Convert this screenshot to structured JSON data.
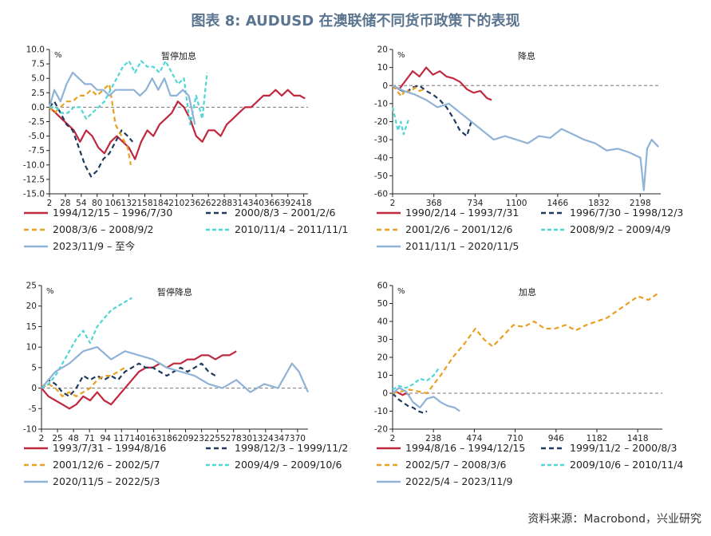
{
  "title": "图表 8: AUDUSD 在澳联储不同货币政策下的表现",
  "source": "资料来源：Macrobond，兴业研究",
  "chart_data": [
    {
      "type": "line",
      "title": "暂停加息",
      "ylabel": "%",
      "ylim": [
        -15,
        10
      ],
      "yticks": [
        "10.0",
        "7.5",
        "5.0",
        "2.5",
        "0.0",
        "-2.5",
        "-5.0",
        "-7.5",
        "-10.0",
        "-12.5",
        "-15.0"
      ],
      "xlim": [
        2,
        425
      ],
      "xticks": [
        "2",
        "28",
        "54",
        "80",
        "106",
        "132",
        "158",
        "184",
        "210",
        "236",
        "262",
        "288",
        "314",
        "340",
        "366",
        "392",
        "418"
      ],
      "series": [
        {
          "name": "1994/12/15 – 1996/7/30",
          "color": "#c0283e",
          "dash": "solid",
          "x": [
            2,
            12,
            22,
            32,
            42,
            52,
            62,
            72,
            82,
            92,
            102,
            112,
            122,
            132,
            142,
            152,
            162,
            172,
            182,
            192,
            202,
            212,
            222,
            232,
            242,
            252,
            262,
            272,
            282,
            292,
            302,
            312,
            322,
            332,
            342,
            352,
            362,
            372,
            382,
            392,
            402,
            412,
            420
          ],
          "y": [
            0,
            -1,
            -2,
            -3,
            -4,
            -6,
            -4,
            -5,
            -7,
            -8,
            -6,
            -5,
            -6,
            -7,
            -9,
            -6,
            -4,
            -5,
            -3,
            -2,
            -1,
            1,
            0,
            -2,
            -5,
            -6,
            -4,
            -4,
            -5,
            -3,
            -2,
            -1,
            0,
            0,
            1,
            2,
            2,
            3,
            2,
            3,
            2,
            2,
            1.5
          ]
        },
        {
          "name": "2000/8/3 – 2001/2/6",
          "color": "#1e3a5f",
          "dash": "6,4",
          "x": [
            2,
            10,
            20,
            30,
            40,
            50,
            60,
            70,
            80,
            90,
            100,
            110,
            120,
            130,
            138
          ],
          "y": [
            0,
            1,
            -1,
            -3,
            -4,
            -7,
            -10,
            -12,
            -11,
            -9,
            -8,
            -6,
            -4,
            -5,
            -6
          ]
        },
        {
          "name": "2008/3/6 – 2008/9/2",
          "color": "#e8a020",
          "dash": "6,4",
          "x": [
            2,
            10,
            20,
            30,
            40,
            50,
            60,
            70,
            80,
            90,
            100,
            110,
            120,
            130,
            135
          ],
          "y": [
            0,
            -1,
            0,
            1,
            1,
            2,
            2,
            3,
            2,
            3,
            4,
            -3,
            -5,
            -7,
            -10
          ]
        },
        {
          "name": "2010/11/4 – 2011/11/1",
          "color": "#4fd6d6",
          "dash": "5,3",
          "x": [
            2,
            12,
            22,
            32,
            42,
            52,
            62,
            72,
            82,
            92,
            102,
            112,
            122,
            132,
            142,
            152,
            162,
            172,
            182,
            192,
            202,
            212,
            222,
            232,
            242,
            252,
            260
          ],
          "y": [
            0,
            0,
            -1,
            -1,
            0,
            0,
            -2,
            -1,
            0,
            1,
            3,
            5,
            7,
            8,
            6,
            8,
            7,
            7,
            6,
            8,
            6,
            4,
            5,
            -3,
            2,
            -2,
            6
          ]
        },
        {
          "name": "2023/11/9 – 至今",
          "color": "#8fb3d6",
          "dash": "solid",
          "x": [
            2,
            10,
            20,
            30,
            40,
            50,
            60,
            70,
            80,
            90,
            100,
            110,
            120,
            130,
            140,
            150,
            160,
            170,
            180,
            190,
            200,
            210,
            220,
            230,
            240
          ],
          "y": [
            0,
            3,
            1,
            4,
            6,
            5,
            4,
            4,
            3,
            3,
            2,
            3,
            3,
            3,
            3,
            2,
            3,
            5,
            3,
            5,
            2,
            2,
            3,
            2,
            -3
          ]
        }
      ]
    },
    {
      "type": "line",
      "title": "降息",
      "ylabel": "%",
      "ylim": [
        -60,
        20
      ],
      "yticks": [
        "20",
        "10",
        "0",
        "-10",
        "-20",
        "-30",
        "-40",
        "-50",
        "-60"
      ],
      "xlim": [
        2,
        2380
      ],
      "xticks": [
        "2",
        "368",
        "734",
        "1100",
        "1466",
        "1832",
        "2198"
      ],
      "series": [
        {
          "name": "1990/2/14 – 1993/7/31",
          "color": "#c0283e",
          "dash": "solid",
          "x": [
            2,
            60,
            120,
            180,
            240,
            300,
            360,
            420,
            480,
            540,
            600,
            660,
            720,
            780,
            840,
            880
          ],
          "y": [
            0,
            -2,
            3,
            8,
            5,
            10,
            6,
            8,
            5,
            4,
            2,
            -2,
            -4,
            -3,
            -7,
            -8
          ]
        },
        {
          "name": "1996/7/30 – 1998/12/3",
          "color": "#1e3a5f",
          "dash": "6,4",
          "x": [
            2,
            60,
            120,
            180,
            240,
            300,
            360,
            420,
            480,
            540,
            600,
            660,
            700
          ],
          "y": [
            0,
            -2,
            -4,
            -1,
            0,
            -3,
            -5,
            -8,
            -12,
            -18,
            -25,
            -28,
            -20
          ]
        },
        {
          "name": "2001/2/6 – 2001/12/6",
          "color": "#e8a020",
          "dash": "6,4",
          "x": [
            2,
            40,
            80,
            120,
            160,
            200,
            240,
            280
          ],
          "y": [
            0,
            -3,
            -6,
            -2,
            -4,
            -1,
            -3,
            -2
          ]
        },
        {
          "name": "2008/9/2 – 2009/4/9",
          "color": "#4fd6d6",
          "dash": "5,3",
          "x": [
            2,
            25,
            50,
            75,
            100,
            125,
            150
          ],
          "y": [
            -12,
            -18,
            -25,
            -20,
            -27,
            -22,
            -18
          ]
        },
        {
          "name": "2011/11/1 – 2020/11/5",
          "color": "#8fb3d6",
          "dash": "solid",
          "x": [
            2,
            100,
            200,
            300,
            400,
            500,
            600,
            700,
            800,
            900,
            1000,
            1100,
            1200,
            1300,
            1400,
            1500,
            1600,
            1700,
            1800,
            1900,
            2000,
            2100,
            2200,
            2230,
            2260,
            2300,
            2360
          ],
          "y": [
            0,
            -3,
            -5,
            -8,
            -12,
            -10,
            -15,
            -20,
            -25,
            -30,
            -28,
            -30,
            -32,
            -28,
            -29,
            -24,
            -27,
            -30,
            -32,
            -36,
            -35,
            -37,
            -40,
            -58,
            -35,
            -30,
            -34
          ]
        }
      ]
    },
    {
      "type": "line",
      "title": "暂停降息",
      "ylabel": "%",
      "ylim": [
        -10,
        25
      ],
      "yticks": [
        "25",
        "20",
        "15",
        "10",
        "5",
        "0",
        "-5",
        "-10"
      ],
      "xlim": [
        2,
        385
      ],
      "xticks": [
        "2",
        "25",
        "48",
        "71",
        "94",
        "117",
        "140",
        "163",
        "186",
        "209",
        "232",
        "255",
        "278",
        "301",
        "324",
        "347",
        "370"
      ],
      "series": [
        {
          "name": "1993/7/31 – 1994/8/16",
          "color": "#c0283e",
          "dash": "solid",
          "x": [
            2,
            12,
            22,
            32,
            42,
            52,
            62,
            72,
            82,
            92,
            102,
            112,
            122,
            132,
            142,
            152,
            162,
            172,
            182,
            192,
            202,
            212,
            222,
            232,
            242,
            252,
            262,
            272,
            282
          ],
          "y": [
            0,
            -2,
            -3,
            -4,
            -5,
            -4,
            -2,
            -3,
            -1,
            -3,
            -4,
            -2,
            0,
            2,
            4,
            5,
            5,
            6,
            5,
            6,
            6,
            7,
            7,
            8,
            8,
            7,
            8,
            8,
            9
          ]
        },
        {
          "name": "1998/12/3 – 1999/11/2",
          "color": "#1e3a5f",
          "dash": "6,4",
          "x": [
            2,
            12,
            22,
            32,
            42,
            52,
            62,
            72,
            82,
            92,
            102,
            112,
            122,
            132,
            142,
            152,
            162,
            172,
            182,
            192,
            202,
            212,
            222,
            232,
            242,
            252
          ],
          "y": [
            0,
            2,
            1,
            -1,
            -2,
            0,
            3,
            2,
            3,
            2,
            3,
            2,
            4,
            5,
            6,
            5,
            5,
            4,
            3,
            4,
            5,
            4,
            5,
            6,
            4,
            3
          ]
        },
        {
          "name": "2001/12/6 – 2002/5/7",
          "color": "#e8a020",
          "dash": "6,4",
          "x": [
            2,
            12,
            22,
            32,
            42,
            52,
            62,
            72,
            82,
            92,
            102,
            112,
            122
          ],
          "y": [
            0,
            1,
            0,
            -2,
            -1,
            -2,
            -1,
            0,
            2,
            3,
            3,
            4,
            5
          ]
        },
        {
          "name": "2009/4/9 – 2009/10/6",
          "color": "#4fd6d6",
          "dash": "5,3",
          "x": [
            2,
            12,
            22,
            32,
            42,
            52,
            62,
            72,
            82,
            92,
            102,
            112,
            122,
            132
          ],
          "y": [
            0,
            1,
            3,
            6,
            9,
            12,
            14,
            11,
            15,
            17,
            19,
            20,
            21,
            22
          ]
        },
        {
          "name": "2020/11/5 – 2022/5/3",
          "color": "#8fb3d6",
          "dash": "solid",
          "x": [
            2,
            22,
            42,
            62,
            82,
            102,
            122,
            142,
            162,
            182,
            202,
            222,
            242,
            262,
            282,
            302,
            322,
            342,
            362,
            372,
            385
          ],
          "y": [
            0,
            4,
            6,
            9,
            10,
            7,
            9,
            8,
            7,
            5,
            4,
            3,
            1,
            0,
            2,
            -1,
            1,
            0,
            6,
            4,
            -1
          ]
        }
      ]
    },
    {
      "type": "line",
      "title": "加息",
      "ylabel": "%",
      "ylim": [
        -20,
        60
      ],
      "yticks": [
        "60",
        "50",
        "40",
        "30",
        "20",
        "10",
        "0",
        "-10",
        "-20"
      ],
      "xlim": [
        2,
        1560
      ],
      "xticks": [
        "2",
        "238",
        "474",
        "710",
        "946",
        "1182",
        "1418"
      ],
      "series": [
        {
          "name": "1994/8/16 – 1994/12/15",
          "color": "#c0283e",
          "dash": "solid",
          "x": [
            2,
            20,
            40,
            60,
            80,
            100
          ],
          "y": [
            0,
            1,
            0,
            -1,
            0,
            -1
          ]
        },
        {
          "name": "1999/11/2 – 2000/8/3",
          "color": "#1e3a5f",
          "dash": "6,4",
          "x": [
            2,
            30,
            60,
            90,
            120,
            150,
            180,
            200
          ],
          "y": [
            0,
            -3,
            -5,
            -7,
            -8,
            -10,
            -11,
            -10
          ]
        },
        {
          "name": "2002/5/7 – 2008/3/6",
          "color": "#e8a020",
          "dash": "6,4",
          "x": [
            2,
            100,
            200,
            280,
            350,
            420,
            480,
            530,
            580,
            640,
            700,
            760,
            820,
            880,
            940,
            1000,
            1060,
            1120,
            1180,
            1240,
            1300,
            1360,
            1420,
            1480,
            1540
          ],
          "y": [
            0,
            2,
            0,
            10,
            20,
            28,
            36,
            30,
            26,
            32,
            38,
            37,
            40,
            36,
            36,
            38,
            35,
            38,
            40,
            42,
            46,
            50,
            54,
            52,
            56
          ]
        },
        {
          "name": "2009/10/6 – 2010/11/4",
          "color": "#4fd6d6",
          "dash": "5,3",
          "x": [
            2,
            40,
            80,
            120,
            160,
            200,
            240,
            270
          ],
          "y": [
            2,
            4,
            3,
            5,
            8,
            7,
            10,
            14
          ]
        },
        {
          "name": "2022/5/4 – 2023/11/9",
          "color": "#8fb3d6",
          "dash": "solid",
          "x": [
            2,
            40,
            80,
            120,
            160,
            200,
            240,
            280,
            320,
            360,
            390
          ],
          "y": [
            0,
            3,
            1,
            -5,
            -8,
            -3,
            -2,
            -5,
            -7,
            -8,
            -10
          ]
        }
      ]
    }
  ]
}
